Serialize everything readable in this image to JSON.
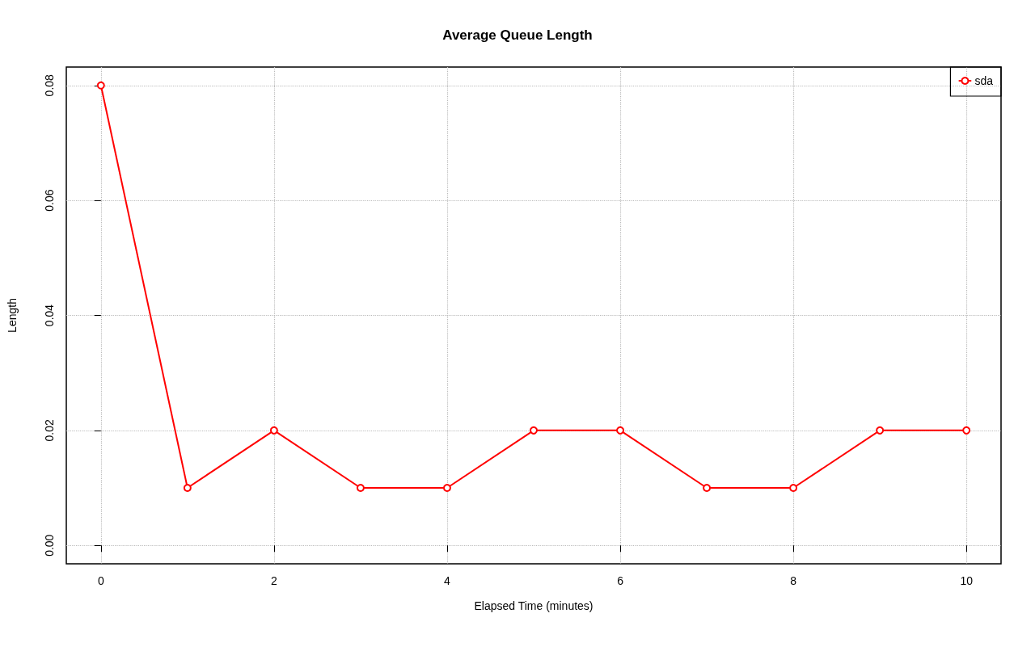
{
  "chart_data": {
    "type": "line",
    "title": "Average Queue Length",
    "xlabel": "Elapsed Time (minutes)",
    "ylabel": "Length",
    "x": [
      0,
      1,
      2,
      3,
      4,
      5,
      6,
      7,
      8,
      9,
      10
    ],
    "series": [
      {
        "name": "sda",
        "color": "#ff0000",
        "values": [
          0.08,
          0.01,
          0.02,
          0.01,
          0.01,
          0.02,
          0.02,
          0.01,
          0.01,
          0.02,
          0.02
        ]
      }
    ],
    "xlim": [
      -0.4,
      10.4
    ],
    "xticks": [
      0,
      2,
      4,
      6,
      8,
      10
    ],
    "ylim": [
      -0.0032,
      0.0832
    ],
    "yticks": [
      {
        "value": 0,
        "label": "0.00"
      },
      0.02,
      0.04,
      0.06,
      0.08
    ],
    "grid": true,
    "legend": "top right",
    "marker": "circle",
    "line_style": "solid"
  }
}
